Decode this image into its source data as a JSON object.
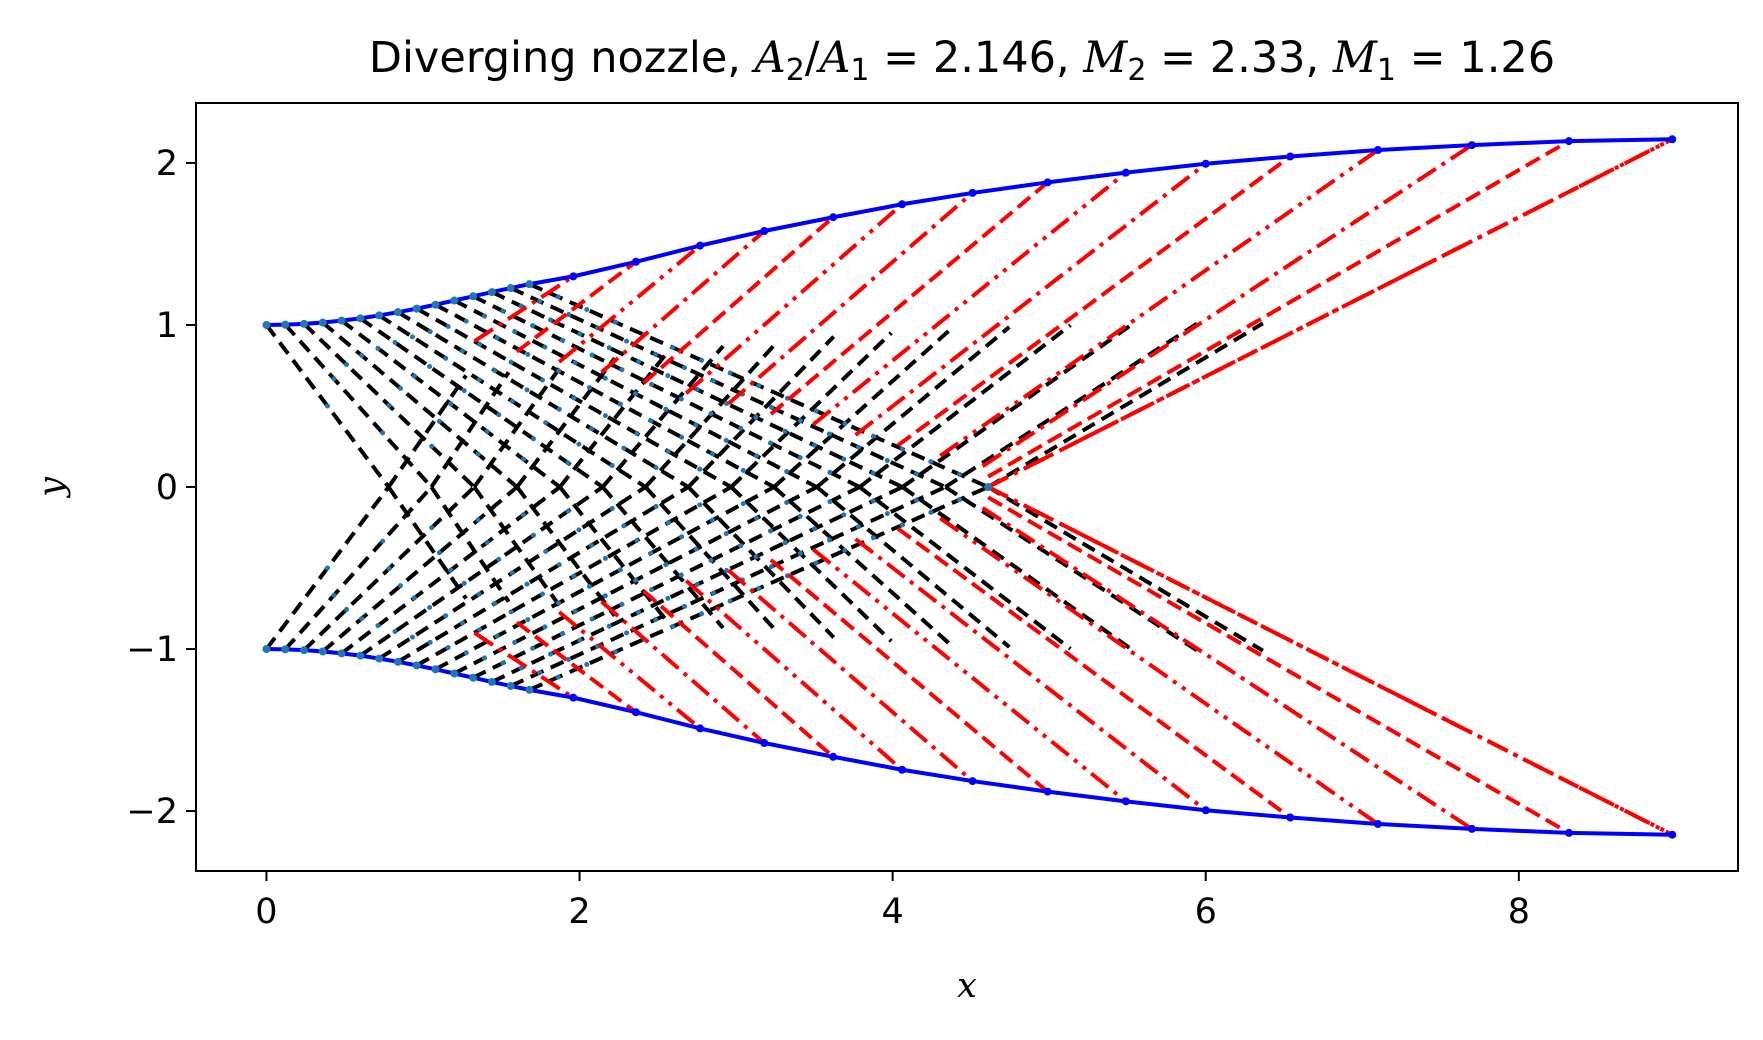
{
  "chart_data": {
    "type": "line",
    "title": {
      "prefix": "Diverging nozzle, ",
      "area_ratio_label": "A",
      "area_ratio_sub_num": "2",
      "area_ratio_sub_den": "1",
      "area_ratio_value": "2.146",
      "mach_label": "M",
      "mach2_sub": "2",
      "mach2_value": "2.33",
      "mach1_sub": "1",
      "mach1_value": "1.26"
    },
    "xlabel": "x",
    "ylabel": "y",
    "xlim": [
      -0.45,
      9.4
    ],
    "ylim": [
      -2.37,
      2.37
    ],
    "x_ticks": [
      0,
      2,
      4,
      6,
      8
    ],
    "x_tick_labels": [
      "0",
      "2",
      "4",
      "6",
      "8"
    ],
    "y_ticks": [
      -2,
      -1,
      0,
      1,
      2
    ],
    "y_tick_labels": [
      "−2",
      "−1",
      "0",
      "1",
      "2"
    ],
    "grid": false,
    "legend": "none",
    "colors": {
      "wall": "#0000ff",
      "wall_marker": "#1f77b4",
      "expansion_characteristics": "#000000",
      "simple_wave_characteristics": "#ff0000",
      "node_marker": "#1f77b4"
    },
    "wall_upper": {
      "x": [
        0,
        0.12,
        0.24,
        0.36,
        0.48,
        0.6,
        0.72,
        0.84,
        0.96,
        1.08,
        1.2,
        1.32,
        1.44,
        1.56,
        1.68,
        1.96,
        2.36,
        2.77,
        3.18,
        3.62,
        4.06,
        4.51,
        4.99,
        5.49,
        6.0,
        6.54,
        7.1,
        7.7,
        8.32,
        8.98
      ],
      "y": [
        1.0,
        1.002,
        1.007,
        1.015,
        1.027,
        1.041,
        1.059,
        1.079,
        1.101,
        1.125,
        1.151,
        1.177,
        1.203,
        1.228,
        1.252,
        1.3,
        1.39,
        1.49,
        1.58,
        1.665,
        1.745,
        1.815,
        1.88,
        1.94,
        1.995,
        2.04,
        2.08,
        2.11,
        2.135,
        2.146
      ]
    },
    "wall_lower": {
      "x": [
        0,
        0.12,
        0.24,
        0.36,
        0.48,
        0.6,
        0.72,
        0.84,
        0.96,
        1.08,
        1.2,
        1.32,
        1.44,
        1.56,
        1.68,
        1.96,
        2.36,
        2.77,
        3.18,
        3.62,
        4.06,
        4.51,
        4.99,
        5.49,
        6.0,
        6.54,
        7.1,
        7.7,
        8.32,
        8.98
      ],
      "y": [
        -1.0,
        -1.002,
        -1.007,
        -1.015,
        -1.027,
        -1.041,
        -1.059,
        -1.079,
        -1.101,
        -1.125,
        -1.151,
        -1.177,
        -1.203,
        -1.228,
        -1.252,
        -1.3,
        -1.39,
        -1.49,
        -1.58,
        -1.665,
        -1.745,
        -1.815,
        -1.88,
        -1.94,
        -1.995,
        -2.04,
        -2.08,
        -2.11,
        -2.135,
        -2.146
      ]
    },
    "kernel": {
      "wave_count": 15,
      "axis_x_first": 0.78,
      "axis_x_last": 4.61,
      "wall_index_start": 0,
      "wall_index_end": 14
    },
    "simple_wave": {
      "axis_x_end": 4.61,
      "exit_x": 8.98,
      "exit_y": 2.146,
      "nodes_upper_x": [
        1.96,
        2.36,
        2.77,
        3.18,
        3.62,
        4.06,
        4.51,
        4.99,
        5.49,
        6.0,
        6.54,
        7.1,
        7.7,
        8.32,
        8.98
      ]
    }
  }
}
